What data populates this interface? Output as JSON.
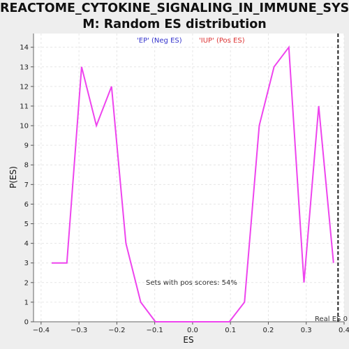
{
  "chart_data": {
    "type": "line",
    "title_line1": "REACTOME_CYTOKINE_SIGNALING_IN_IMMUNE_SYSTE",
    "title_line2": "M: Random ES distribution",
    "xlabel": "ES",
    "ylabel": "P(ES)",
    "xlim": [
      -0.42,
      0.4
    ],
    "ylim": [
      0,
      14.7
    ],
    "xticks": [
      -0.4,
      -0.3,
      -0.2,
      -0.1,
      0.0,
      0.1,
      0.2,
      0.3,
      0.4
    ],
    "xtick_labels": [
      "−0.4",
      "−0.3",
      "−0.2",
      "−0.1",
      "0.0",
      "0.1",
      "0.2",
      "0.3",
      "0.4"
    ],
    "yticks": [
      0,
      1,
      2,
      3,
      4,
      5,
      6,
      7,
      8,
      9,
      10,
      11,
      12,
      13,
      14
    ],
    "grid": true,
    "series": [
      {
        "color": "#ee44ee",
        "x": [
          -0.372,
          -0.332,
          -0.293,
          -0.254,
          -0.214,
          -0.176,
          -0.137,
          -0.098,
          -0.059,
          -0.02,
          0.019,
          0.058,
          0.097,
          0.137,
          0.176,
          0.215,
          0.254,
          0.294,
          0.333,
          0.372
        ],
        "y": [
          3,
          3,
          13,
          10,
          12,
          4,
          1,
          0,
          0,
          0,
          0,
          0,
          0,
          1,
          10,
          13,
          14,
          2,
          11,
          3
        ]
      }
    ],
    "legend": [
      {
        "label": "'EP' (Neg ES)",
        "color": "#3333cc"
      },
      {
        "label": "'IUP' (Pos ES)",
        "color": "#dd3333"
      }
    ],
    "annotation": "Sets with pos scores: 54%",
    "real_es": {
      "label": "Real ES 0",
      "x": 0.384
    }
  }
}
